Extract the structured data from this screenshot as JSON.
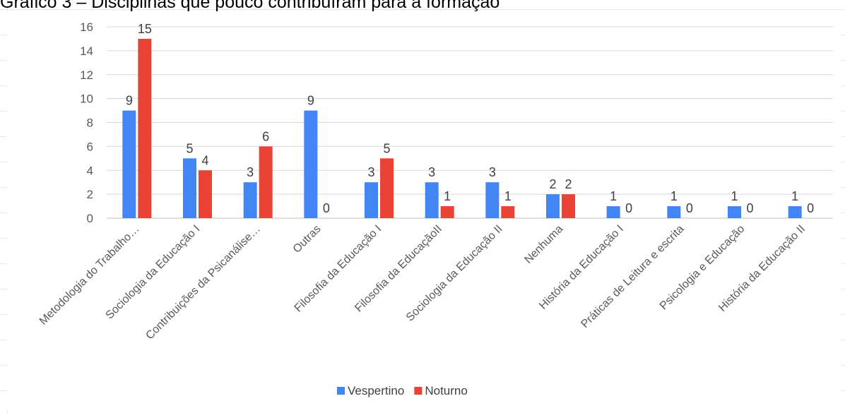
{
  "title": "Gráfico 3 – Disciplinas que pouco contribuíram para a formação",
  "colors": {
    "vespertino": "#4285f4",
    "noturno": "#ea4335",
    "grid": "#d9d9d9",
    "axis": "#bfbfbf"
  },
  "chart_data": {
    "type": "bar",
    "title": "",
    "xlabel": "",
    "ylabel": "",
    "ylim": [
      0,
      16
    ],
    "yticks": [
      0,
      2,
      4,
      6,
      8,
      10,
      12,
      14,
      16
    ],
    "grid": true,
    "legend_position": "bottom",
    "categories": [
      "Metodologia do Trabalho…",
      "Sociologia da Educação I",
      "Contribuições da Psicanálise…",
      "Outras",
      "Filosofia da Educação I",
      "Filosofia da EducaçãoII",
      "Sociologia da Educação II",
      "Nenhuma",
      "História da Educação I",
      "Práticas de Leitura e escrita",
      "Psicologia e Educação",
      "História da Educação II"
    ],
    "series": [
      {
        "name": "Vespertino",
        "color": "#4285f4",
        "values": [
          9,
          5,
          3,
          9,
          3,
          3,
          3,
          2,
          1,
          1,
          1,
          1
        ]
      },
      {
        "name": "Noturno",
        "color": "#ea4335",
        "values": [
          15,
          4,
          6,
          0,
          5,
          1,
          1,
          2,
          0,
          0,
          0,
          0
        ]
      }
    ]
  }
}
